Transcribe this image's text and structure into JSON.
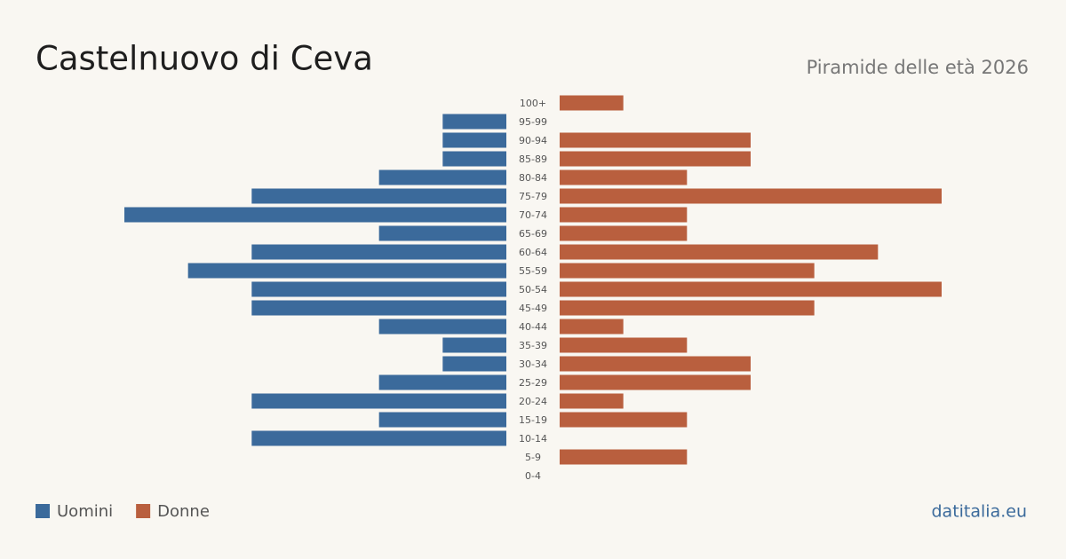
{
  "chart_data": {
    "type": "pyramid",
    "title": "Castelnuovo di Ceva",
    "subtitle": "Piramide delle età 2026",
    "source": "datitalia.eu",
    "categories": [
      "100+",
      "95-99",
      "90-94",
      "85-89",
      "80-84",
      "75-79",
      "70-74",
      "65-69",
      "60-64",
      "55-59",
      "50-54",
      "45-49",
      "40-44",
      "35-39",
      "30-34",
      "25-29",
      "20-24",
      "15-19",
      "10-14",
      "5-9",
      "0-4"
    ],
    "series": [
      {
        "name": "Uomini",
        "color": "#3b6a9b",
        "values": [
          0,
          1,
          1,
          1,
          2,
          4,
          6,
          2,
          4,
          5,
          4,
          4,
          2,
          1,
          1,
          2,
          4,
          2,
          4,
          0,
          0
        ]
      },
      {
        "name": "Donne",
        "color": "#b95f3e",
        "values": [
          1,
          0,
          3,
          3,
          2,
          6,
          2,
          2,
          5,
          4,
          6,
          4,
          1,
          2,
          3,
          3,
          1,
          2,
          0,
          2,
          0
        ]
      }
    ]
  }
}
